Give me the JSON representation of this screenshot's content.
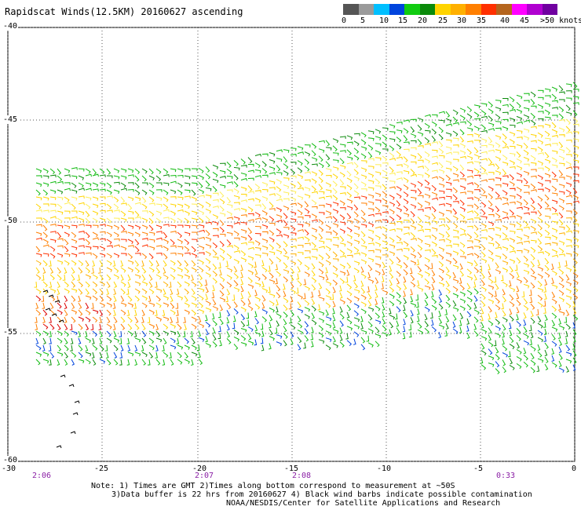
{
  "title": "Rapidscat Winds(12.5KM) 20160627 ascending",
  "color_scale": {
    "colors": [
      "#555555",
      "#9a9a9a",
      "#00bfff",
      "#0044dd",
      "#11cc11",
      "#0a8a0a",
      "#ffd400",
      "#ffb000",
      "#ff7f00",
      "#ff3000",
      "#b5651d",
      "#ff00ff",
      "#b000d0",
      "#7000a0"
    ],
    "labels": [
      "0",
      "5",
      "10",
      "15",
      "20",
      "25",
      "30",
      "35",
      "40",
      "45",
      ">50 knots"
    ]
  },
  "axes": {
    "x_ticks": [
      "-30",
      "-25",
      "-20",
      "-15",
      "-10",
      "-5",
      "0"
    ],
    "y_ticks": [
      "-40",
      "-45",
      "-50",
      "-55",
      "-60"
    ]
  },
  "pass_times": [
    "2:06",
    "2:07",
    "2:08",
    "0:33"
  ],
  "notes": [
    "Note: 1) Times are GMT 2)Times along bottom correspond to measurement at ~50S",
    "3)Data buffer is 22 hrs from 20160627 4) Black wind barbs indicate possible contamination",
    "NOAA/NESDIS/Center for Satellite Applications and Research"
  ]
}
